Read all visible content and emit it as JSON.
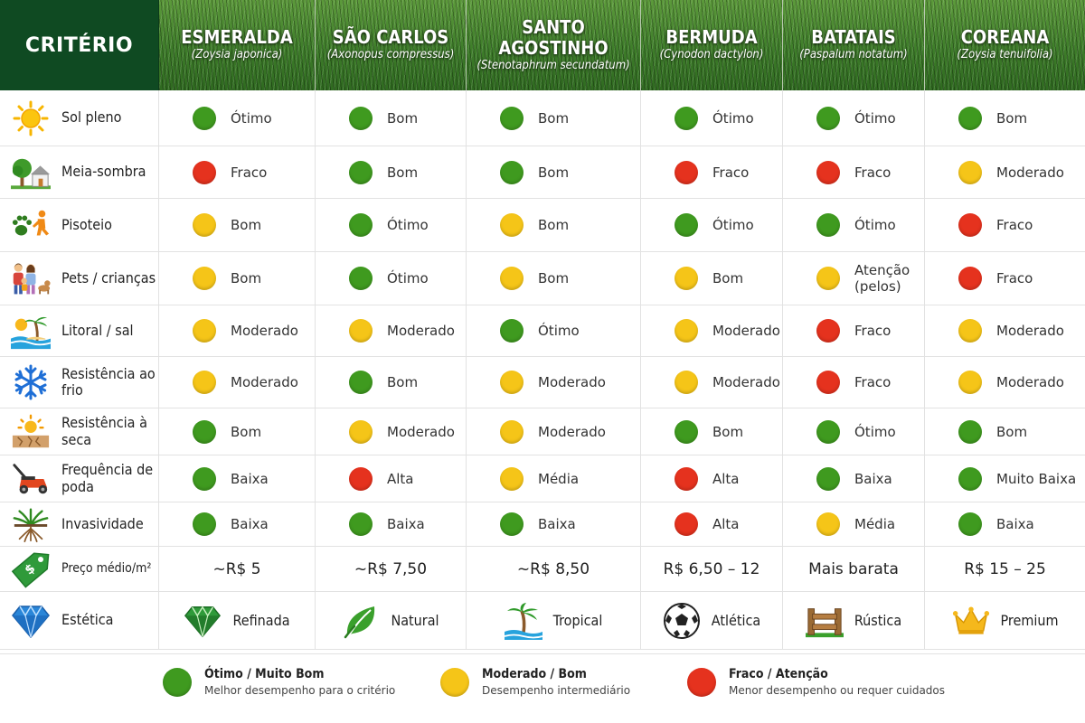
{
  "colors": {
    "good": "#3f9a1f",
    "moderate": "#f5c518",
    "weak": "#e5321e",
    "header_dark": "#0f4a22"
  },
  "header": {
    "criteria_label": "CRITÉRIO",
    "grasses": [
      {
        "name": "ESMERALDA",
        "scientific": "(Zoysia japonica)"
      },
      {
        "name": "SÃO CARLOS",
        "scientific": "(Axonopus compressus)"
      },
      {
        "name": "SANTO AGOSTINHO",
        "scientific": "(Stenotaphrum secundatum)"
      },
      {
        "name": "BERMUDA",
        "scientific": "(Cynodon dactylon)"
      },
      {
        "name": "BATATAIS",
        "scientific": "(Paspalum notatum)"
      },
      {
        "name": "COREANA",
        "scientific": "(Zoysia tenuifolia)"
      }
    ]
  },
  "rows": [
    {
      "criterion": "Sol pleno",
      "icon": "sun-icon",
      "values": [
        {
          "rating": "good",
          "text": "Ótimo"
        },
        {
          "rating": "good",
          "text": "Bom"
        },
        {
          "rating": "good",
          "text": "Bom"
        },
        {
          "rating": "good",
          "text": "Ótimo"
        },
        {
          "rating": "good",
          "text": "Ótimo"
        },
        {
          "rating": "good",
          "text": "Bom"
        }
      ]
    },
    {
      "criterion": "Meia-sombra",
      "icon": "tree-house-icon",
      "values": [
        {
          "rating": "weak",
          "text": "Fraco"
        },
        {
          "rating": "good",
          "text": "Bom"
        },
        {
          "rating": "good",
          "text": "Bom"
        },
        {
          "rating": "weak",
          "text": "Fraco"
        },
        {
          "rating": "weak",
          "text": "Fraco"
        },
        {
          "rating": "moderate",
          "text": "Moderado"
        }
      ]
    },
    {
      "criterion": "Pisoteio",
      "icon": "paw-runner-icon",
      "values": [
        {
          "rating": "moderate",
          "text": "Bom"
        },
        {
          "rating": "good",
          "text": "Ótimo"
        },
        {
          "rating": "moderate",
          "text": "Bom"
        },
        {
          "rating": "good",
          "text": "Ótimo"
        },
        {
          "rating": "good",
          "text": "Ótimo"
        },
        {
          "rating": "weak",
          "text": "Fraco"
        }
      ]
    },
    {
      "criterion": "Pets / crianças",
      "icon": "family-pet-icon",
      "values": [
        {
          "rating": "moderate",
          "text": "Bom"
        },
        {
          "rating": "good",
          "text": "Ótimo"
        },
        {
          "rating": "moderate",
          "text": "Bom"
        },
        {
          "rating": "moderate",
          "text": "Bom"
        },
        {
          "rating": "moderate",
          "text": "Atenção (pelos)"
        },
        {
          "rating": "weak",
          "text": "Fraco"
        }
      ]
    },
    {
      "criterion": "Litoral / sal",
      "icon": "beach-icon",
      "values": [
        {
          "rating": "moderate",
          "text": "Moderado"
        },
        {
          "rating": "moderate",
          "text": "Moderado"
        },
        {
          "rating": "good",
          "text": "Ótimo"
        },
        {
          "rating": "moderate",
          "text": "Moderado"
        },
        {
          "rating": "weak",
          "text": "Fraco"
        },
        {
          "rating": "moderate",
          "text": "Moderado"
        }
      ]
    },
    {
      "criterion": "Resistência ao frio",
      "icon": "snowflake-icon",
      "values": [
        {
          "rating": "moderate",
          "text": "Moderado"
        },
        {
          "rating": "good",
          "text": "Bom"
        },
        {
          "rating": "moderate",
          "text": "Moderado"
        },
        {
          "rating": "moderate",
          "text": "Moderado"
        },
        {
          "rating": "weak",
          "text": "Fraco"
        },
        {
          "rating": "moderate",
          "text": "Moderado"
        }
      ]
    },
    {
      "criterion": "Resistência à seca",
      "icon": "drought-icon",
      "values": [
        {
          "rating": "good",
          "text": "Bom"
        },
        {
          "rating": "moderate",
          "text": "Moderado"
        },
        {
          "rating": "moderate",
          "text": "Moderado"
        },
        {
          "rating": "good",
          "text": "Bom"
        },
        {
          "rating": "good",
          "text": "Ótimo"
        },
        {
          "rating": "good",
          "text": "Bom"
        }
      ]
    },
    {
      "criterion": "Frequência de poda",
      "icon": "lawnmower-icon",
      "values": [
        {
          "rating": "good",
          "text": "Baixa"
        },
        {
          "rating": "weak",
          "text": "Alta"
        },
        {
          "rating": "moderate",
          "text": "Média"
        },
        {
          "rating": "weak",
          "text": "Alta"
        },
        {
          "rating": "good",
          "text": "Baixa"
        },
        {
          "rating": "good",
          "text": "Muito Baixa"
        }
      ]
    },
    {
      "criterion": "Invasividade",
      "icon": "grass-roots-icon",
      "values": [
        {
          "rating": "good",
          "text": "Baixa"
        },
        {
          "rating": "good",
          "text": "Baixa"
        },
        {
          "rating": "good",
          "text": "Baixa"
        },
        {
          "rating": "weak",
          "text": "Alta"
        },
        {
          "rating": "moderate",
          "text": "Média"
        },
        {
          "rating": "good",
          "text": "Baixa"
        }
      ]
    }
  ],
  "price_row": {
    "criterion": "Preço médio/m²",
    "icon": "price-tag-icon",
    "values": [
      "~R$ 5",
      "~R$ 7,50",
      "~R$ 8,50",
      "R$ 6,50 – 12",
      "Mais barata",
      "R$ 15 – 25"
    ]
  },
  "aesthetic_row": {
    "criterion": "Estética",
    "icon": "diamond-icon",
    "values": [
      {
        "icon": "gem-icon",
        "text": "Refinada"
      },
      {
        "icon": "leaf-icon",
        "text": "Natural"
      },
      {
        "icon": "palm-tree-icon",
        "text": "Tropical"
      },
      {
        "icon": "soccer-ball-icon",
        "text": "Atlética"
      },
      {
        "icon": "wooden-fence-icon",
        "text": "Rústica"
      },
      {
        "icon": "crown-icon",
        "text": "Premium"
      }
    ]
  },
  "legend": [
    {
      "rating": "good",
      "title": "Ótimo / Muito Bom",
      "desc": "Melhor desempenho para o critério"
    },
    {
      "rating": "moderate",
      "title": "Moderado / Bom",
      "desc": "Desempenho intermediário"
    },
    {
      "rating": "weak",
      "title": "Fraco / Atenção",
      "desc": "Menor desempenho ou requer cuidados"
    }
  ]
}
